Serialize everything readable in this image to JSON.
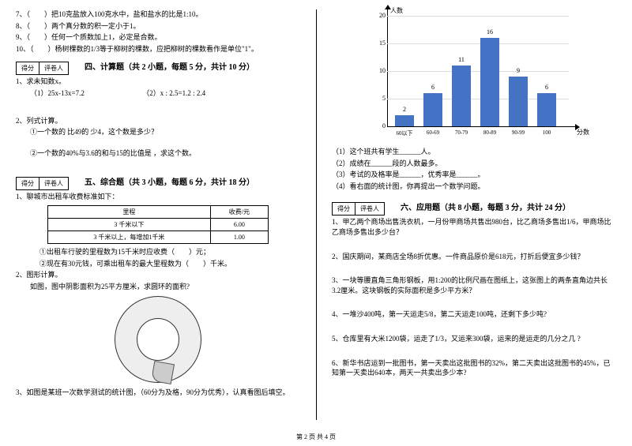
{
  "left": {
    "q7": "7、（　　）把10克盐放入100克水中，盐和盐水的比是1:10。",
    "q8": "8、（　　）两个真分数的积一定小于1。",
    "q9": "9、（　　）任何一个质数加上1，必定是合数。",
    "q10": "10、（　　）杨树棵数的1/3等于柳树的棵数，应把柳树的棵数看作是单位\"1\"。",
    "score1": "得分",
    "score2": "评卷人",
    "sec4_title": "四、计算题（共 2 小题，每题 5 分，共计 10 分）",
    "s4_1": "1、求未知数x。",
    "s4_1a": "（1）25x-13x=7.2",
    "s4_1b": "（2）x : 2.5=1.2 : 2.4",
    "s4_2": "2、列式计算。",
    "s4_2a": "①一个数的 比49的 少4，这个数是多少？",
    "s4_2b": "②一个数的40%与3.6的和与15的比值是 ，求这个数。",
    "sec5_title": "五、综合题（共 3 小题，每题 6 分，共计 18 分）",
    "s5_1": "1、聊城市出租车收费标准如下：",
    "fare_h1": "里程",
    "fare_h2": "收费/元",
    "fare_r1c1": "3 千米以下",
    "fare_r1c2": "6.00",
    "fare_r2c1": "3 千米以上，每增加1千米",
    "fare_r2c2": "1.00",
    "s5_1a": "①出租车行驶的里程数为15千米时应收费（　　）元；",
    "s5_1b": "②现在有30元钱，可乘出租车的最大里程数为（　　）千米。",
    "s5_2": "2、图形计算。",
    "s5_2a": "如图，图中阴影面积为25平方厘米，求圆环的面积?",
    "s5_3": "3、如图是某班一次数学测试的统计图，（60分为及格，90分为优秀），认真看图后填空。"
  },
  "right": {
    "chart": {
      "ylabel": "人数",
      "xlabel": "分数",
      "categories": [
        "60以下",
        "60-69",
        "70-79",
        "80-89",
        "90-99",
        "100"
      ],
      "values": [
        2,
        6,
        11,
        16,
        9,
        6
      ],
      "ymax": 20,
      "ystep": 5,
      "bar_color": "#4472c4",
      "grid_color": "#dddddd"
    },
    "c1": "（1）这个班共有学生______人。",
    "c2": "（2）成绩在______段的人数最多。",
    "c3": "（3）考试的及格率是______，优秀率是______。",
    "c4": "（4）看右面的统计图，你再提出一个数学问题。",
    "score1": "得分",
    "score2": "评卷人",
    "sec6_title": "六、应用题（共 8 小题，每题 3 分，共计 24 分）",
    "s6_1": "1、甲乙两个商场出售洗衣机，一月份甲商场共售出980台，比乙商场多售出1/6，甲商场比乙商场多售出多少台？",
    "s6_2": "2、国庆期间，某商店全场8折优惠。一件商品原价是618元，打折后便宜多少钱？",
    "s6_3": "3、一块等腰直角三角形钢板，用1:200的比例尺画在图纸上，这张图上的两条直角边共长3.2厘米。这块钢板的实际面积是多少平方米？",
    "s6_4": "4、一堆沙400吨，第一天运走5/8，第二天运走100吨，还剩下多少吨?",
    "s6_5": "5、仓库里有大米1200袋，运走了1/3，又运来300袋，运来的是运走的几分之几 ?",
    "s6_6": "6、新华书店运到一批图书，第一天卖出这批图书的32%，第二天卖出这批图书的45%，已知第一天卖出640本，两天一共卖出多少本?"
  },
  "footer": "第 2 页 共 4 页"
}
